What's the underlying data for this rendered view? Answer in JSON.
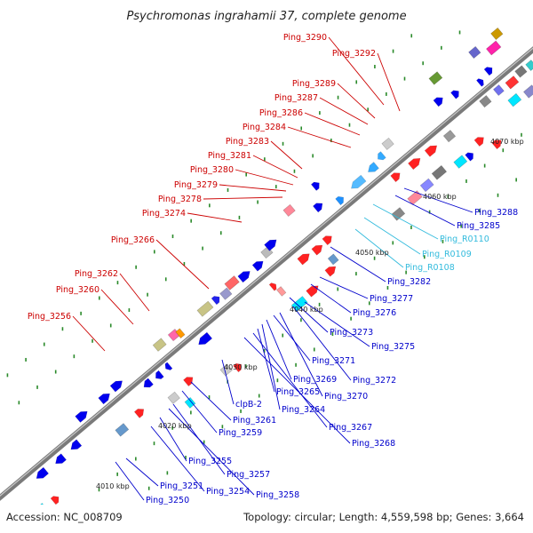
{
  "title": "Psychromonas ingrahamii 37, complete genome",
  "footer": {
    "accession": "Accession: NC_008709",
    "summary": "Topology: circular; Length: 4,559,598 bp; Genes: 3,664"
  },
  "colors": {
    "forward_label": "#cc0000",
    "reverse_label": "#0000cc",
    "rna_label": "#33bbdd",
    "backbone": "#7a7a7a",
    "tick": "#2a8a2a"
  },
  "scale_labels": [
    "4010 kbp",
    "4020 kbp",
    "4030 kbp",
    "4040 kbp",
    "4050 kbp",
    "4060 kbp",
    "4070 kbp"
  ],
  "forward_labels": [
    "Ping_3290",
    "Ping_3292",
    "Ping_3289",
    "Ping_3287",
    "Ping_3286",
    "Ping_3284",
    "Ping_3283",
    "Ping_3281",
    "Ping_3280",
    "Ping_3279",
    "Ping_3278",
    "Ping_3274",
    "Ping_3266",
    "Ping_3262",
    "Ping_3260",
    "Ping_3256"
  ],
  "reverse_labels": [
    "Ping_3288",
    "Ping_3285",
    "Ping_R0110",
    "Ping_R0109",
    "Ping_R0108",
    "Ping_3282",
    "Ping_3277",
    "Ping_3276",
    "Ping_3273",
    "Ping_3275",
    "Ping_3271",
    "Ping_3272",
    "Ping_3269",
    "Ping_3270",
    "Ping_3265",
    "Ping_3264",
    "clpB-2",
    "Ping_3261",
    "Ping_3267",
    "Ping_3259",
    "Ping_3268",
    "Ping_3255",
    "Ping_3257",
    "Ping_3251",
    "Ping_3254",
    "Ping_3258",
    "Ping_3250"
  ]
}
